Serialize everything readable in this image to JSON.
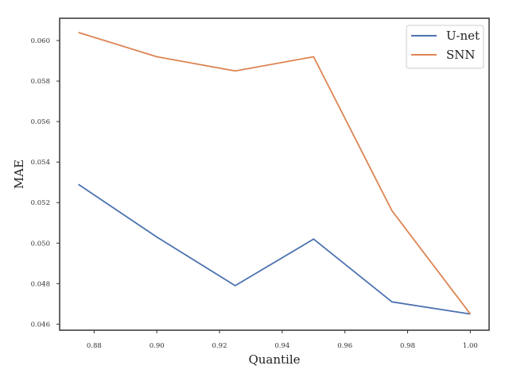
{
  "chart_data": {
    "type": "line",
    "xlabel": "Quantile",
    "ylabel": "MAE",
    "xlim": [
      0.869,
      1.006
    ],
    "ylim": [
      0.0457,
      0.0611
    ],
    "xticks": [
      0.88,
      0.9,
      0.92,
      0.94,
      0.96,
      0.98,
      1.0
    ],
    "xtick_labels": [
      "0.88",
      "0.90",
      "0.92",
      "0.94",
      "0.96",
      "0.98",
      "1.00"
    ],
    "yticks": [
      0.046,
      0.048,
      0.05,
      0.052,
      0.054,
      0.056,
      0.058,
      0.06
    ],
    "ytick_labels": [
      "0.046",
      "0.048",
      "0.050",
      "0.052",
      "0.054",
      "0.056",
      "0.058",
      "0.060"
    ],
    "grid": false,
    "legend_position": "top-right",
    "x": [
      0.875,
      0.9,
      0.925,
      0.95,
      0.975,
      1.0
    ],
    "series": [
      {
        "name": "U-net",
        "color": "#4c72b0",
        "values": [
          0.0529,
          0.0503,
          0.0479,
          0.0502,
          0.0471,
          0.0465
        ]
      },
      {
        "name": "SNN",
        "color": "#dd8452",
        "values": [
          0.0604,
          0.0592,
          0.0585,
          0.0592,
          0.0516,
          0.0465
        ]
      }
    ]
  }
}
